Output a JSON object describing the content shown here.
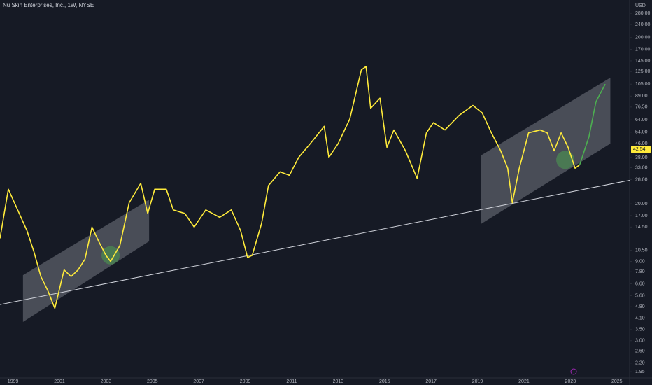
{
  "chart_data": {
    "type": "line",
    "title": "Nu Skin Enterprises, Inc., 1W, NYSE",
    "y_unit": "USD",
    "log_scale": true,
    "xlim": [
      1998.44,
      2025.55
    ],
    "xticks": [
      1999,
      2001,
      2003,
      2005,
      2007,
      2009,
      2011,
      2013,
      2015,
      2017,
      2019,
      2021,
      2023,
      2025
    ],
    "ylim": [
      1.79,
      337
    ],
    "yticks": [
      {
        "value": 280,
        "label": "280.00"
      },
      {
        "value": 240,
        "label": "240.00"
      },
      {
        "value": 200,
        "label": "200.00"
      },
      {
        "value": 170,
        "label": "170.00"
      },
      {
        "value": 145,
        "label": "145.00"
      },
      {
        "value": 125,
        "label": "125.00"
      },
      {
        "value": 105,
        "label": "105.00"
      },
      {
        "value": 89,
        "label": "89.00"
      },
      {
        "value": 76.5,
        "label": "76.50"
      },
      {
        "value": 64,
        "label": "64.00"
      },
      {
        "value": 54,
        "label": "54.00"
      },
      {
        "value": 46,
        "label": "46.00"
      },
      {
        "value": 38,
        "label": "38.00"
      },
      {
        "value": 33,
        "label": "33.00"
      },
      {
        "value": 28,
        "label": "28.00"
      },
      {
        "value": 20,
        "label": "20.00"
      },
      {
        "value": 17,
        "label": "17.00"
      },
      {
        "value": 14.5,
        "label": "14.50"
      },
      {
        "value": 10.5,
        "label": "10.50"
      },
      {
        "value": 9,
        "label": "9.00"
      },
      {
        "value": 7.8,
        "label": "7.80"
      },
      {
        "value": 6.6,
        "label": "6.60"
      },
      {
        "value": 5.6,
        "label": "5.60"
      },
      {
        "value": 4.8,
        "label": "4.80"
      },
      {
        "value": 4.1,
        "label": "4.10"
      },
      {
        "value": 3.5,
        "label": "3.50"
      },
      {
        "value": 3,
        "label": "3.00"
      },
      {
        "value": 2.6,
        "label": "2.60"
      },
      {
        "value": 2.2,
        "label": "2.20"
      },
      {
        "value": 1.95,
        "label": "1.95"
      }
    ],
    "last_value": 42.54,
    "series": [
      {
        "color": "#ffeb3b",
        "x": [
          1998.44,
          1998.8,
          1999.2,
          1999.6,
          1999.9,
          2000.2,
          2000.5,
          2000.8,
          2001.2,
          2001.5,
          2001.8,
          2002.1,
          2002.4,
          2002.7,
          2003.0,
          2003.2,
          2003.6,
          2004.0,
          2004.5,
          2004.8,
          2005.1,
          2005.6,
          2005.9,
          2006.4,
          2006.8,
          2007.3,
          2007.9,
          2008.4,
          2008.8,
          2009.1,
          2009.3,
          2009.7,
          2010.0,
          2010.5,
          2010.9,
          2011.3,
          2011.8,
          2012.4,
          2012.6,
          2013.0,
          2013.5,
          2014.0,
          2014.2,
          2014.4,
          2014.8,
          2015.1,
          2015.4,
          2015.9,
          2016.4,
          2016.8,
          2017.1,
          2017.6,
          2018.2,
          2018.8,
          2019.2,
          2019.6,
          2020.0,
          2020.3,
          2020.5,
          2020.8,
          2021.2,
          2021.7,
          2022.0,
          2022.3,
          2022.6,
          2022.9,
          2023.2,
          2023.4
        ],
        "values": [
          12.4,
          24.5,
          18.4,
          13.8,
          10.3,
          7.3,
          6.0,
          4.7,
          8.0,
          7.3,
          8.0,
          9.3,
          14.5,
          11.8,
          9.8,
          9.0,
          11.2,
          20.3,
          26.6,
          17.5,
          24.5,
          24.5,
          18.4,
          17.5,
          14.5,
          18.4,
          16.6,
          18.4,
          13.8,
          9.5,
          9.8,
          15.2,
          25.8,
          31.2,
          29.7,
          38.1,
          46.1,
          58.6,
          38.1,
          46.1,
          64.8,
          128,
          134,
          75.2,
          86.5,
          43.8,
          55.7,
          41.7,
          28.5,
          53.5,
          61.6,
          55.7,
          68.0,
          78.3,
          70.6,
          53.5,
          41.7,
          32.8,
          20.3,
          32.8,
          53.5,
          55.7,
          53.5,
          41.7,
          53.5,
          43.8,
          32.8,
          34.4
        ]
      },
      {
        "color": "#4caf50",
        "x": [
          2023.4,
          2023.8,
          2024.1,
          2024.5
        ],
        "values": [
          34.4,
          50.8,
          82.3,
          105
        ]
      }
    ],
    "trendline": {
      "color": "#d1d4dc",
      "x": [
        1998.44,
        2025.7
      ],
      "values": [
        4.95,
        28
      ]
    },
    "channels": [
      {
        "x": [
          1999.43,
          2004.86
        ],
        "upper": [
          7.44,
          21.2
        ],
        "lower": [
          3.89,
          11.9
        ]
      },
      {
        "x": [
          2019.14,
          2024.72
        ],
        "upper": [
          39.1,
          114.8
        ],
        "lower": [
          15.1,
          46.1
        ]
      }
    ],
    "markers": {
      "color": "#4caf50",
      "x": [
        2003.2,
        2022.78
      ],
      "values": [
        9.8,
        36.8
      ]
    }
  }
}
